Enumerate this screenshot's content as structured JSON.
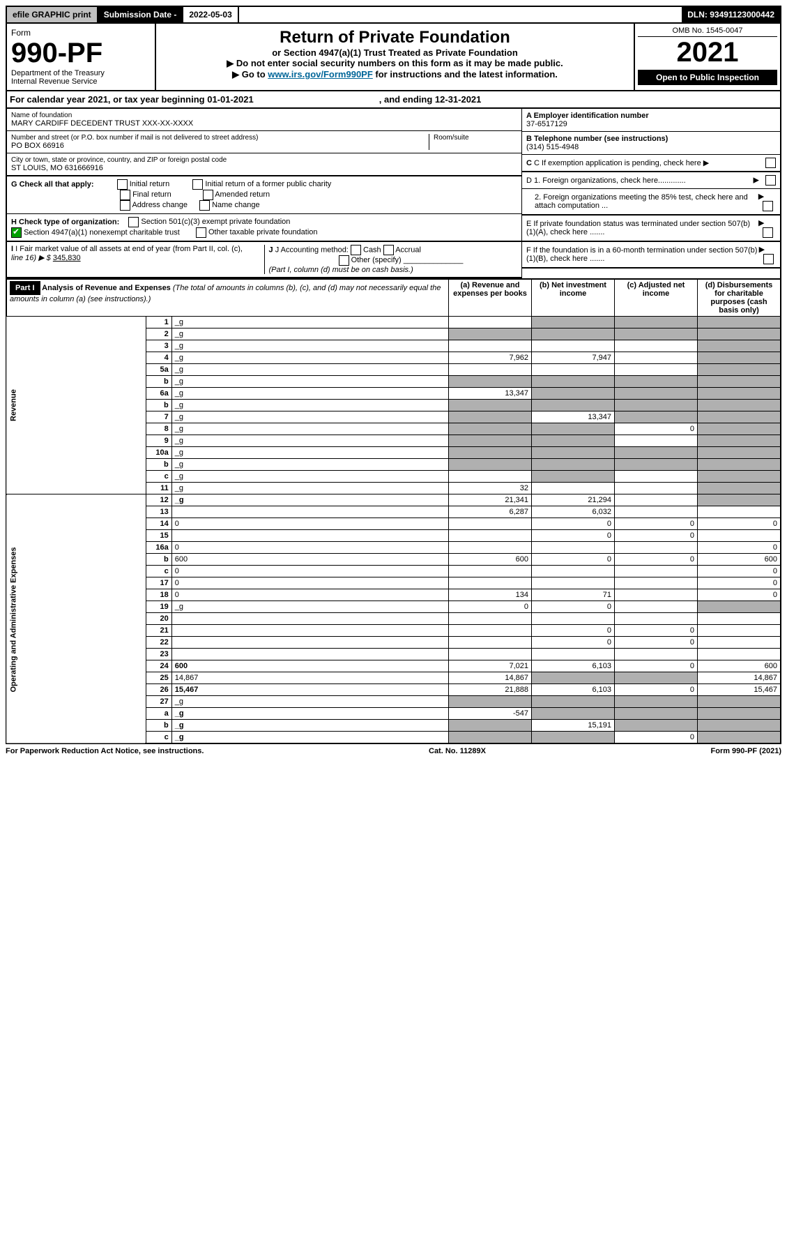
{
  "topbar": {
    "efile": "efile GRAPHIC print",
    "subdate_label": "Submission Date - ",
    "subdate": "2022-05-03",
    "dln": "DLN: 93491123000442"
  },
  "header": {
    "form_label": "Form",
    "form_num": "990-PF",
    "dept": "Department of the Treasury\nInternal Revenue Service",
    "title": "Return of Private Foundation",
    "sub1": "or Section 4947(a)(1) Trust Treated as Private Foundation",
    "sub2": "▶ Do not enter social security numbers on this form as it may be made public.",
    "sub3_pre": "▶ Go to ",
    "sub3_link": "www.irs.gov/Form990PF",
    "sub3_post": " for instructions and the latest information.",
    "omb": "OMB No. 1545-0047",
    "year": "2021",
    "open": "Open to Public Inspection"
  },
  "calrow": {
    "text": "For calendar year 2021, or tax year beginning 01-01-2021",
    "end": ", and ending 12-31-2021"
  },
  "info": {
    "name_label": "Name of foundation",
    "name": "MARY CARDIFF DECEDENT TRUST XXX-XX-XXXX",
    "addr_label": "Number and street (or P.O. box number if mail is not delivered to street address)",
    "addr": "PO BOX 66916",
    "room_label": "Room/suite",
    "city_label": "City or town, state or province, country, and ZIP or foreign postal code",
    "city": "ST LOUIS, MO  631666916",
    "A_label": "A Employer identification number",
    "A": "37-6517129",
    "B_label": "B Telephone number (see instructions)",
    "B": "(314) 515-4948",
    "C": "C If exemption application is pending, check here",
    "D1": "D 1. Foreign organizations, check here.............",
    "D2": "2. Foreign organizations meeting the 85% test, check here and attach computation ...",
    "E": "E If private foundation status was terminated under section 507(b)(1)(A), check here .......",
    "F": "F If the foundation is in a 60-month termination under section 507(b)(1)(B), check here .......",
    "G": "G Check all that apply:",
    "G_opts": [
      "Initial return",
      "Final return",
      "Address change",
      "Initial return of a former public charity",
      "Amended return",
      "Name change"
    ],
    "H": "H Check type of organization:",
    "H1": "Section 501(c)(3) exempt private foundation",
    "H2": "Section 4947(a)(1) nonexempt charitable trust",
    "H3": "Other taxable private foundation",
    "I_label": "I Fair market value of all assets at end of year (from Part II, col. (c),",
    "I_line": "line 16) ▶ $",
    "I_val": "345,830",
    "J_label": "J Accounting method:",
    "J_opts": [
      "Cash",
      "Accrual"
    ],
    "J_other": "Other (specify)",
    "J_note": "(Part I, column (d) must be on cash basis.)"
  },
  "part1": {
    "label": "Part I",
    "title": "Analysis of Revenue and Expenses",
    "note": "(The total of amounts in columns (b), (c), and (d) may not necessarily equal the amounts in column (a) (see instructions).)",
    "cols": {
      "a": "(a) Revenue and expenses per books",
      "b": "(b) Net investment income",
      "c": "(c) Adjusted net income",
      "d": "(d) Disbursements for charitable purposes (cash basis only)"
    }
  },
  "sections": {
    "revenue": "Revenue",
    "opex": "Operating and Administrative Expenses"
  },
  "rows": [
    {
      "n": "1",
      "d": "_g",
      "a": "",
      "b": "_g",
      "c": "_g"
    },
    {
      "n": "2",
      "d": "_g",
      "a": "_g",
      "b": "_g",
      "c": "_g"
    },
    {
      "n": "3",
      "d": "_g",
      "a": "",
      "b": "",
      "c": ""
    },
    {
      "n": "4",
      "d": "_g",
      "a": "7,962",
      "b": "7,947",
      "c": ""
    },
    {
      "n": "5a",
      "d": "_g",
      "a": "",
      "b": "",
      "c": ""
    },
    {
      "n": "b",
      "d": "_g",
      "a": "_g",
      "b": "_g",
      "c": "_g"
    },
    {
      "n": "6a",
      "d": "_g",
      "a": "13,347",
      "b": "_g",
      "c": "_g"
    },
    {
      "n": "b",
      "d": "_g",
      "a": "_g",
      "b": "_g",
      "c": "_g"
    },
    {
      "n": "7",
      "d": "_g",
      "a": "_g",
      "b": "13,347",
      "c": "_g"
    },
    {
      "n": "8",
      "d": "_g",
      "a": "_g",
      "b": "_g",
      "c": "0"
    },
    {
      "n": "9",
      "d": "_g",
      "a": "_g",
      "b": "_g",
      "c": ""
    },
    {
      "n": "10a",
      "d": "_g",
      "a": "_g",
      "b": "_g",
      "c": "_g"
    },
    {
      "n": "b",
      "d": "_g",
      "a": "_g",
      "b": "_g",
      "c": "_g"
    },
    {
      "n": "c",
      "d": "_g",
      "a": "",
      "b": "_g",
      "c": ""
    },
    {
      "n": "11",
      "d": "_g",
      "a": "32",
      "b": "",
      "c": ""
    },
    {
      "n": "12",
      "d": "_g",
      "a": "21,341",
      "b": "21,294",
      "c": "",
      "bold": true
    },
    {
      "n": "13",
      "d": "",
      "a": "6,287",
      "b": "6,032",
      "c": ""
    },
    {
      "n": "14",
      "d": "0",
      "a": "",
      "b": "0",
      "c": "0"
    },
    {
      "n": "15",
      "d": "",
      "a": "",
      "b": "0",
      "c": "0"
    },
    {
      "n": "16a",
      "d": "0",
      "a": "",
      "b": "",
      "c": ""
    },
    {
      "n": "b",
      "d": "600",
      "a": "600",
      "b": "0",
      "c": "0"
    },
    {
      "n": "c",
      "d": "0",
      "a": "",
      "b": "",
      "c": ""
    },
    {
      "n": "17",
      "d": "0",
      "a": "",
      "b": "",
      "c": ""
    },
    {
      "n": "18",
      "d": "0",
      "a": "134",
      "b": "71",
      "c": ""
    },
    {
      "n": "19",
      "d": "_g",
      "a": "0",
      "b": "0",
      "c": ""
    },
    {
      "n": "20",
      "d": "",
      "a": "",
      "b": "",
      "c": ""
    },
    {
      "n": "21",
      "d": "",
      "a": "",
      "b": "0",
      "c": "0"
    },
    {
      "n": "22",
      "d": "",
      "a": "",
      "b": "0",
      "c": "0"
    },
    {
      "n": "23",
      "d": "",
      "a": "",
      "b": "",
      "c": ""
    },
    {
      "n": "24",
      "d": "600",
      "a": "7,021",
      "b": "6,103",
      "c": "0",
      "bold": true
    },
    {
      "n": "25",
      "d": "14,867",
      "a": "14,867",
      "b": "_g",
      "c": "_g"
    },
    {
      "n": "26",
      "d": "15,467",
      "a": "21,888",
      "b": "6,103",
      "c": "0",
      "bold": true
    },
    {
      "n": "27",
      "d": "_g",
      "a": "_g",
      "b": "_g",
      "c": "_g"
    },
    {
      "n": "a",
      "d": "_g",
      "a": "-547",
      "b": "_g",
      "c": "_g",
      "bold": true
    },
    {
      "n": "b",
      "d": "_g",
      "a": "_g",
      "b": "15,191",
      "c": "_g",
      "bold": true
    },
    {
      "n": "c",
      "d": "_g",
      "a": "_g",
      "b": "_g",
      "c": "0",
      "bold": true
    }
  ],
  "footer": {
    "left": "For Paperwork Reduction Act Notice, see instructions.",
    "mid": "Cat. No. 11289X",
    "right": "Form 990-PF (2021)"
  },
  "colors": {
    "grey": "#b0b0b0",
    "link": "#006699"
  }
}
